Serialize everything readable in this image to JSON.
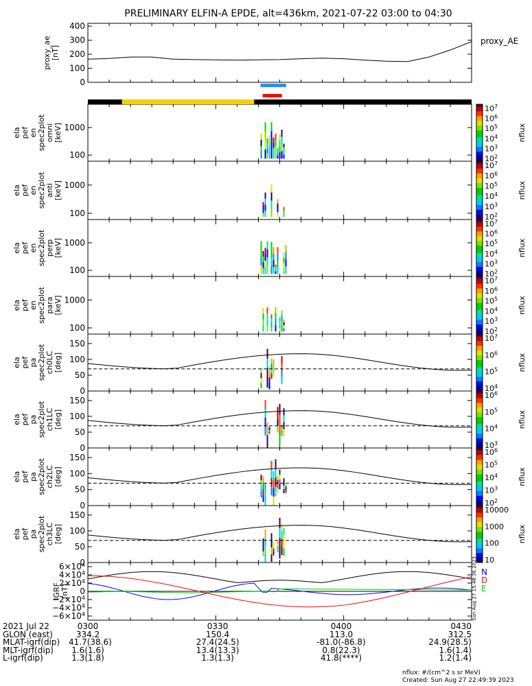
{
  "title": "PRELIMINARY ELFIN-A EPDE, alt=436km, 2021-07-22 03:00 to 04:30",
  "chart_data": {
    "type": "multi-panel spectrogram",
    "time_range": [
      "2021-07-22 03:00",
      "2021-07-22 04:30"
    ],
    "panels": [
      {
        "id": "proxy_ae",
        "type": "line",
        "ylabel": "proxy_ae\n[nT]",
        "yticks": [
          "400",
          "300",
          "200",
          "100",
          "0"
        ],
        "ylim": [
          0,
          420
        ],
        "legend": "proxy_AE",
        "x": [
          0,
          5,
          10,
          15,
          20,
          25,
          30,
          35,
          40,
          45,
          50,
          55,
          60,
          65,
          70,
          75,
          80,
          85,
          90
        ],
        "values": [
          165,
          170,
          180,
          180,
          165,
          162,
          160,
          158,
          160,
          162,
          168,
          172,
          168,
          158,
          150,
          148,
          180,
          230,
          290
        ]
      },
      {
        "id": "ela_pef_en_spec2plot_omni",
        "type": "heatmap",
        "ylabel": "ela\npef\nen\nspec2plot\nomni\n[keV]",
        "yticks": [
          "1000",
          "100"
        ],
        "log": true,
        "ylim": [
          60,
          7000
        ],
        "colorbar": {
          "label": "nflux",
          "ticks": [
            "10^7",
            "10^6",
            "10^5",
            "10^4",
            "10^3",
            "10^2"
          ]
        }
      },
      {
        "id": "ela_pef_en_spec2plot_anti",
        "type": "heatmap",
        "ylabel": "ela\npef\nen\nspec2plot\nanti\n[keV]",
        "yticks": [
          "1000",
          "100"
        ],
        "log": true,
        "ylim": [
          60,
          7000
        ],
        "colorbar": {
          "label": "nflux",
          "ticks": [
            "10^7",
            "10^6",
            "10^5",
            "10^4",
            "10^3",
            "10^2"
          ]
        }
      },
      {
        "id": "ela_pef_en_spec2plot_perp",
        "type": "heatmap",
        "ylabel": "ela\npef\nen\nspec2plot\nperp\n[keV]",
        "yticks": [
          "1000",
          "100"
        ],
        "log": true,
        "ylim": [
          60,
          7000
        ],
        "colorbar": {
          "label": "nflux",
          "ticks": [
            "10^7",
            "10^6",
            "10^5",
            "10^4",
            "10^3",
            "10^2"
          ]
        }
      },
      {
        "id": "ela_pef_en_spec2plot_para",
        "type": "heatmap",
        "ylabel": "ela\npef\nen\nspec2plot\npara\n[keV]",
        "yticks": [
          "1000",
          "100"
        ],
        "log": true,
        "ylim": [
          60,
          7000
        ],
        "colorbar": {
          "label": "nflux",
          "ticks": [
            "10^7",
            "10^6",
            "10^5",
            "10^4",
            "10^3",
            "10^2"
          ]
        }
      },
      {
        "id": "ela_pef_pa_spec2plot_ch0LC",
        "type": "heatmap",
        "ylabel": "ela\npef\npa\nspec2plot\nch0LC\n[deg]",
        "yticks": [
          "150",
          "100",
          "50",
          "0"
        ],
        "ylim": [
          0,
          180
        ],
        "colorbar": {
          "label": "nflux",
          "ticks": [
            "10^7",
            "10^6",
            "10^5",
            "10^4"
          ]
        }
      },
      {
        "id": "ela_pef_pa_spec2plot_ch1LC",
        "type": "heatmap",
        "ylabel": "ela\npef\npa\nspec2plot\nch1LC\n[deg]",
        "yticks": [
          "150",
          "100",
          "50",
          "0"
        ],
        "ylim": [
          0,
          180
        ],
        "colorbar": {
          "label": "nflux",
          "ticks": [
            "10^6",
            "10^5",
            "10^4",
            "10^3"
          ]
        }
      },
      {
        "id": "ela_pef_pa_spec2plot_ch2LC",
        "type": "heatmap",
        "ylabel": "ela\npef\npa\nspec2plot\nch2LC\n[deg]",
        "yticks": [
          "150",
          "100",
          "50",
          "0"
        ],
        "ylim": [
          0,
          180
        ],
        "colorbar": {
          "label": "nflux",
          "ticks": [
            "10^6",
            "10^5",
            "10^4",
            "10^3",
            "10^2"
          ]
        }
      },
      {
        "id": "ela_pef_pa_spec2plot_ch3LC",
        "type": "heatmap",
        "ylabel": "ela\npef\npa\nspec2plot\nch3LC\n[deg]",
        "yticks": [
          "150",
          "100",
          "50",
          "0"
        ],
        "ylim": [
          0,
          180
        ],
        "colorbar": {
          "label": "nflux",
          "ticks": [
            "10000",
            "1000",
            "100",
            "10"
          ]
        }
      },
      {
        "id": "igrf",
        "type": "line",
        "ylabel": "IGRF\n[nT]",
        "yticks": [
          "6×10^4",
          "4×10^4",
          "2×10^4",
          "0",
          "−2×10^4",
          "−4×10^4",
          "−6×10^4"
        ],
        "ylim": [
          -65000,
          65000
        ],
        "legend": [
          "N",
          "E",
          "D"
        ],
        "legend_colors": [
          "#0000ff",
          "#00cc00",
          "#ff0000"
        ]
      }
    ],
    "bottom_rows": [
      {
        "label": "2021 Jul 22",
        "values": [
          "0300",
          "0330",
          "0400",
          "0430"
        ]
      },
      {
        "label": "GLON (east)",
        "values": [
          "334.2",
          "150.4",
          "113.0",
          "312.5"
        ]
      },
      {
        "label": "MLAT-igrf(dip)",
        "values": [
          "41.7(38.6)",
          "27.4(24.5)",
          "-81.0(-86.8)",
          "24.9(28.5)"
        ]
      },
      {
        "label": "MLT-igrf(dip)",
        "values": [
          "1.6(1.6)",
          "13.4(13.3)",
          "0.8(22.3)",
          "1.6(1.4)"
        ]
      },
      {
        "label": "L-igrf(dip)",
        "values": [
          "1.3(1.8)",
          "1.3(1.3)",
          "41.8(****)",
          "1.2(1.4)"
        ]
      }
    ]
  },
  "footer": {
    "units": "nflux: #/(cm^2 s sr MeV)",
    "created": "Created: Sun Aug 27 22:49:39 2023",
    "side_stamp": "Sun Aug 27 15:48:36 2023"
  }
}
